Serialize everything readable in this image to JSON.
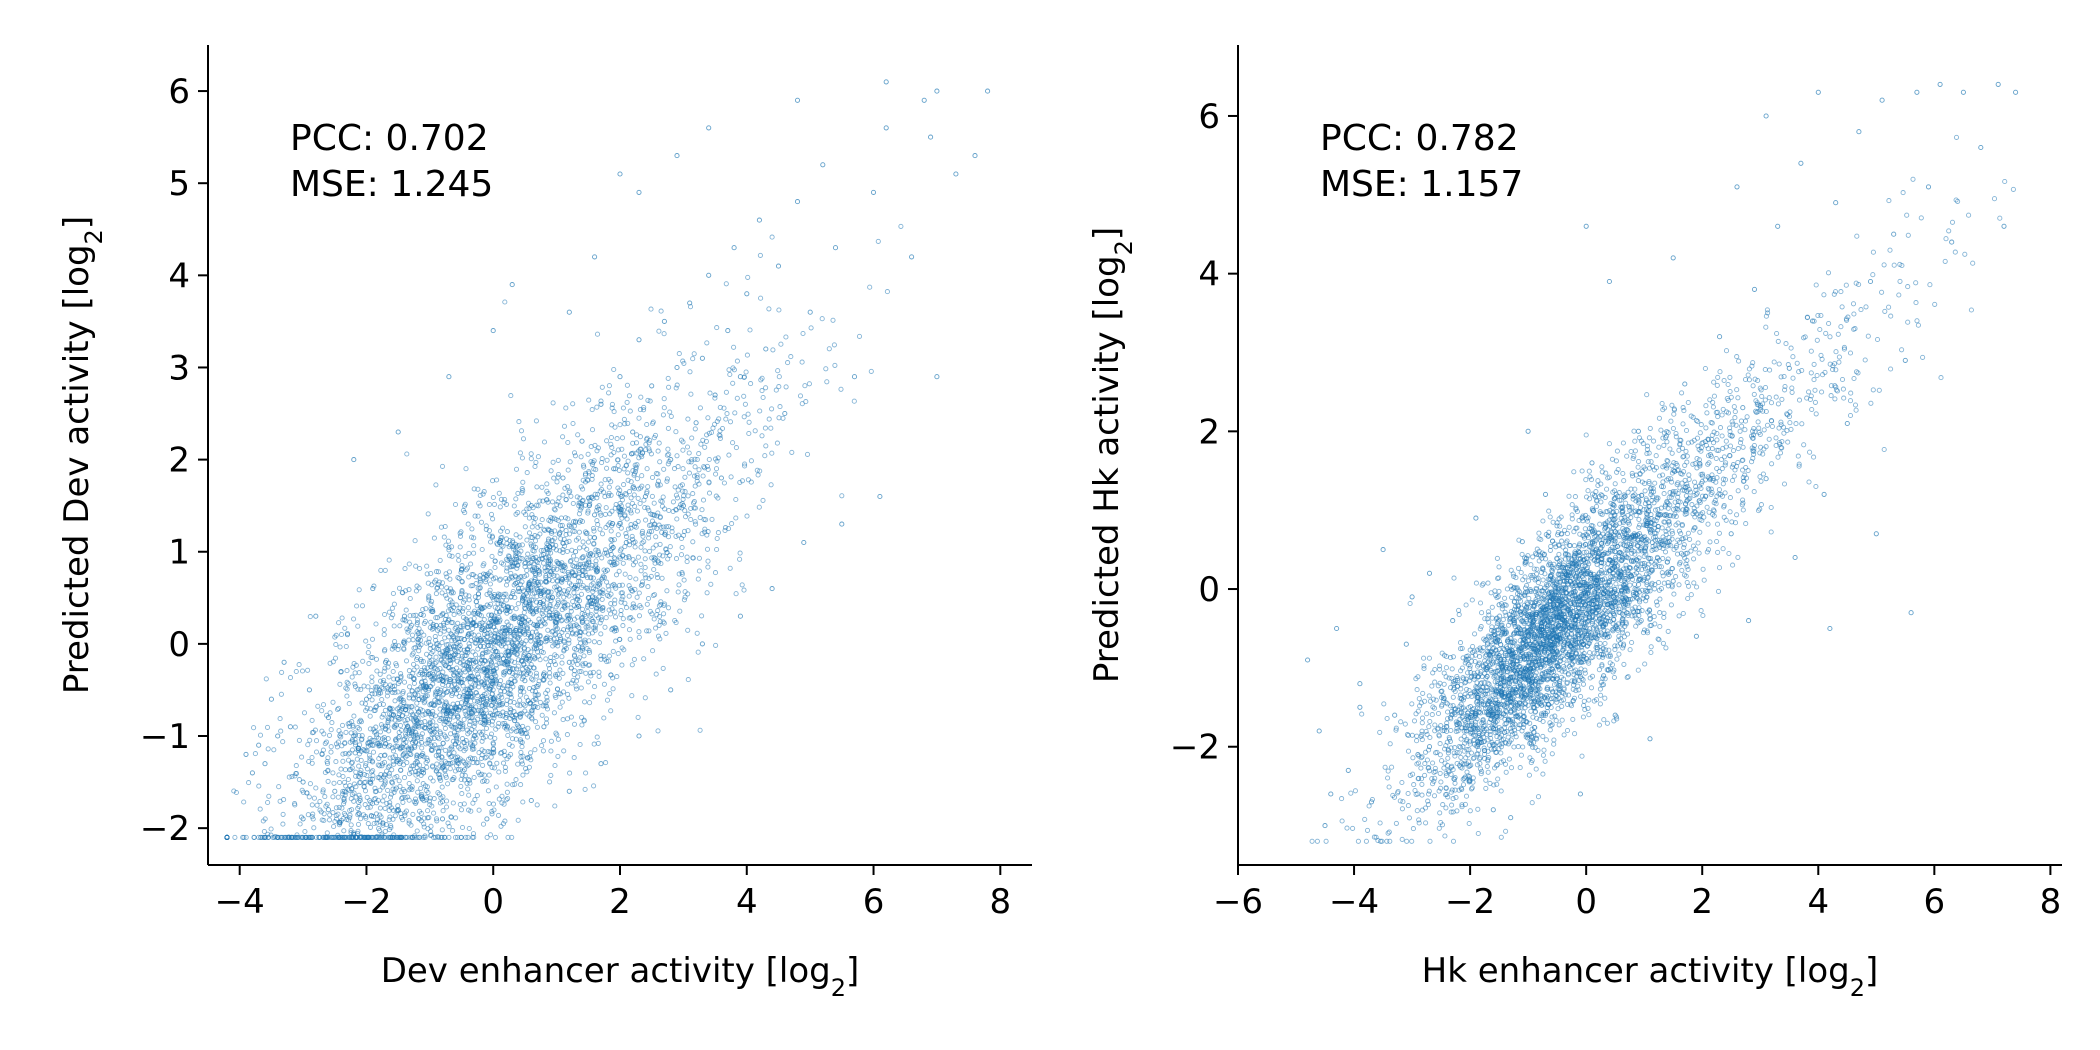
{
  "chart_data": [
    {
      "type": "scatter",
      "annotations": [
        "PCC: 0.702",
        "MSE: 1.245"
      ],
      "xlabel": {
        "main": "Dev enhancer activity [log",
        "sub": "2",
        "end": "]"
      },
      "ylabel": {
        "main": "Predicted Dev activity [log",
        "sub": "2",
        "end": "]"
      },
      "xlim": [
        -4.5,
        8.5
      ],
      "ylim": [
        -2.4,
        6.5
      ],
      "xticks": [
        -4,
        -2,
        0,
        2,
        4,
        6,
        8
      ],
      "xtick_labels": [
        "−4",
        "−2",
        "0",
        "2",
        "4",
        "6",
        "8"
      ],
      "yticks": [
        -2,
        -1,
        0,
        1,
        2,
        3,
        4,
        5,
        6
      ],
      "ytick_labels": [
        "−2",
        "−1",
        "0",
        "1",
        "2",
        "3",
        "4",
        "5",
        "6"
      ],
      "grid": false,
      "marker_color": "#1f77b4",
      "series": [
        {
          "points": [
            [
              -3.9,
              -1.2
            ],
            [
              -3.8,
              -1.4
            ],
            [
              -3.7,
              -1.1
            ],
            [
              -3.6,
              -1.3
            ],
            [
              -3.5,
              -0.6
            ],
            [
              -3.4,
              -1.0
            ],
            [
              -3.3,
              -0.2
            ],
            [
              -3.2,
              -0.9
            ],
            [
              -3.0,
              -1.5
            ],
            [
              -2.9,
              -0.5
            ],
            [
              -2.8,
              0.3
            ],
            [
              -2.7,
              -1.2
            ],
            [
              -2.6,
              -0.8
            ],
            [
              -2.5,
              -1.6
            ],
            [
              -2.4,
              -0.3
            ],
            [
              -2.3,
              0.1
            ],
            [
              -2.2,
              -1.0
            ],
            [
              -2.1,
              -1.4
            ],
            [
              -2.0,
              -0.6
            ],
            [
              -1.9,
              0.6
            ],
            [
              -1.8,
              -1.1
            ],
            [
              -1.7,
              -0.2
            ],
            [
              -1.6,
              -1.5
            ],
            [
              -1.5,
              -0.8
            ],
            [
              -1.4,
              0.3
            ],
            [
              -1.3,
              -1.2
            ],
            [
              -1.2,
              -0.5
            ],
            [
              -1.1,
              -1.4
            ],
            [
              -1.0,
              -0.9
            ],
            [
              -0.9,
              0.2
            ],
            [
              -0.8,
              -0.4
            ],
            [
              -0.7,
              -1.3
            ],
            [
              -0.6,
              -0.7
            ],
            [
              -0.5,
              0.8
            ],
            [
              -0.4,
              -0.2
            ],
            [
              -0.3,
              -1.0
            ],
            [
              -0.2,
              0.4
            ],
            [
              -0.1,
              -0.6
            ],
            [
              0.0,
              -0.3
            ],
            [
              0.1,
              1.1
            ],
            [
              0.2,
              -0.8
            ],
            [
              0.3,
              0.0
            ],
            [
              0.4,
              0.6
            ],
            [
              0.5,
              -0.4
            ],
            [
              0.6,
              1.5
            ],
            [
              0.7,
              0.2
            ],
            [
              0.8,
              -0.9
            ],
            [
              0.9,
              0.9
            ],
            [
              1.0,
              0.3
            ],
            [
              1.1,
              1.8
            ],
            [
              1.2,
              -0.2
            ],
            [
              1.3,
              1.0
            ],
            [
              1.4,
              2.2
            ],
            [
              1.5,
              0.5
            ],
            [
              1.6,
              1.4
            ],
            [
              1.7,
              2.6
            ],
            [
              1.8,
              0.8
            ],
            [
              1.9,
              1.9
            ],
            [
              2.0,
              2.9
            ],
            [
              2.1,
              1.1
            ],
            [
              2.2,
              2.3
            ],
            [
              2.3,
              3.3
            ],
            [
              2.4,
              1.6
            ],
            [
              2.5,
              2.8
            ],
            [
              2.6,
              0.9
            ],
            [
              2.7,
              3.5
            ],
            [
              2.8,
              2.0
            ],
            [
              2.9,
              3.0
            ],
            [
              3.0,
              1.5
            ],
            [
              3.1,
              3.7
            ],
            [
              3.2,
              2.4
            ],
            [
              3.3,
              3.1
            ],
            [
              3.4,
              4.0
            ],
            [
              3.5,
              2.7
            ],
            [
              3.6,
              1.8
            ],
            [
              3.7,
              3.4
            ],
            [
              3.8,
              4.3
            ],
            [
              3.9,
              2.9
            ],
            [
              4.0,
              3.8
            ],
            [
              4.2,
              4.6
            ],
            [
              4.3,
              3.2
            ],
            [
              4.5,
              4.1
            ],
            [
              4.6,
              2.5
            ],
            [
              4.8,
              4.8
            ],
            [
              5.0,
              3.6
            ],
            [
              5.2,
              5.2
            ],
            [
              5.4,
              4.3
            ],
            [
              5.7,
              2.9
            ],
            [
              6.0,
              4.9
            ],
            [
              6.2,
              5.6
            ],
            [
              6.6,
              4.2
            ],
            [
              6.8,
              5.9
            ],
            [
              7.0,
              2.9
            ],
            [
              7.3,
              5.1
            ],
            [
              7.6,
              5.3
            ],
            [
              7.8,
              6.0
            ],
            [
              6.1,
              1.6
            ],
            [
              5.5,
              1.3
            ],
            [
              4.9,
              1.1
            ],
            [
              4.4,
              0.6
            ],
            [
              3.9,
              0.3
            ],
            [
              3.3,
              0.0
            ],
            [
              2.8,
              -0.5
            ],
            [
              2.3,
              -1.0
            ],
            [
              1.7,
              -1.3
            ],
            [
              1.2,
              -1.6
            ],
            [
              0.6,
              -1.7
            ],
            [
              -0.1,
              -1.9
            ],
            [
              -0.8,
              -1.9
            ],
            [
              -1.5,
              -1.8
            ],
            [
              -2.1,
              -1.7
            ],
            [
              -2.6,
              -1.8
            ],
            [
              -3.0,
              -1.9
            ],
            [
              -2.2,
              2.0
            ],
            [
              -1.5,
              2.3
            ],
            [
              -0.7,
              2.9
            ],
            [
              0.0,
              3.4
            ],
            [
              0.3,
              3.9
            ],
            [
              1.2,
              3.6
            ],
            [
              1.6,
              4.2
            ],
            [
              2.3,
              4.9
            ],
            [
              2.0,
              5.1
            ],
            [
              2.9,
              5.3
            ],
            [
              3.4,
              5.6
            ],
            [
              4.8,
              5.9
            ],
            [
              6.2,
              6.1
            ],
            [
              7.0,
              6.0
            ],
            [
              6.9,
              5.5
            ]
          ]
        }
      ]
    },
    {
      "type": "scatter",
      "annotations": [
        "PCC: 0.782",
        "MSE: 1.157"
      ],
      "xlabel": {
        "main": "Hk enhancer activity [log",
        "sub": "2",
        "end": "]"
      },
      "ylabel": {
        "main": "Predicted Hk activity [log",
        "sub": "2",
        "end": "]"
      },
      "xlim": [
        -6,
        8.2
      ],
      "ylim": [
        -3.5,
        6.9
      ],
      "xticks": [
        -6,
        -4,
        -2,
        0,
        2,
        4,
        6,
        8
      ],
      "xtick_labels": [
        "−6",
        "−4",
        "−2",
        "0",
        "2",
        "4",
        "6",
        "8"
      ],
      "yticks": [
        -2,
        0,
        2,
        4,
        6
      ],
      "ytick_labels": [
        "−2",
        "0",
        "2",
        "4",
        "6"
      ],
      "grid": false,
      "marker_color": "#1f77b4",
      "series": [
        {
          "points": [
            [
              -4.8,
              -0.9
            ],
            [
              -4.6,
              -1.8
            ],
            [
              -4.5,
              -3.0
            ],
            [
              -4.3,
              -0.5
            ],
            [
              -4.1,
              -2.3
            ],
            [
              -3.9,
              -1.2
            ],
            [
              -3.7,
              -2.7
            ],
            [
              -3.5,
              0.5
            ],
            [
              -3.3,
              -1.6
            ],
            [
              -3.1,
              -0.7
            ],
            [
              -2.9,
              -2.1
            ],
            [
              -2.7,
              0.2
            ],
            [
              -2.5,
              -1.3
            ],
            [
              -2.3,
              -0.4
            ],
            [
              -2.1,
              -2.4
            ],
            [
              -1.9,
              0.9
            ],
            [
              -1.7,
              -1.0
            ],
            [
              -1.5,
              -0.2
            ],
            [
              -1.3,
              -2.9
            ],
            [
              -1.1,
              0.6
            ],
            [
              -0.9,
              -1.5
            ],
            [
              -0.7,
              1.2
            ],
            [
              -0.5,
              -0.8
            ],
            [
              -0.3,
              0.3
            ],
            [
              -0.1,
              -2.6
            ],
            [
              0.1,
              1.6
            ],
            [
              0.3,
              -1.1
            ],
            [
              0.5,
              0.8
            ],
            [
              0.7,
              -0.3
            ],
            [
              0.9,
              2.0
            ],
            [
              1.1,
              -1.9
            ],
            [
              1.3,
              1.3
            ],
            [
              1.5,
              0.1
            ],
            [
              1.7,
              2.6
            ],
            [
              1.9,
              -0.6
            ],
            [
              2.1,
              1.9
            ],
            [
              2.3,
              3.2
            ],
            [
              2.5,
              0.7
            ],
            [
              2.7,
              2.3
            ],
            [
              2.9,
              3.8
            ],
            [
              3.1,
              1.4
            ],
            [
              3.3,
              4.6
            ],
            [
              3.5,
              2.8
            ],
            [
              3.7,
              5.4
            ],
            [
              3.9,
              3.4
            ],
            [
              4.1,
              1.2
            ],
            [
              4.3,
              4.9
            ],
            [
              4.5,
              2.1
            ],
            [
              4.7,
              5.8
            ],
            [
              4.9,
              3.9
            ],
            [
              5.1,
              6.2
            ],
            [
              5.3,
              4.5
            ],
            [
              5.5,
              2.9
            ],
            [
              5.7,
              6.3
            ],
            [
              5.9,
              5.1
            ],
            [
              6.1,
              6.4
            ],
            [
              6.3,
              4.4
            ],
            [
              6.5,
              6.3
            ],
            [
              6.8,
              5.6
            ],
            [
              7.1,
              6.4
            ],
            [
              7.2,
              4.6
            ],
            [
              7.4,
              6.3
            ],
            [
              5.6,
              -0.3
            ],
            [
              5.0,
              0.7
            ],
            [
              4.2,
              -0.5
            ],
            [
              3.6,
              0.4
            ],
            [
              2.8,
              -0.4
            ],
            [
              0.5,
              -1.6
            ],
            [
              -1.6,
              -2.8
            ],
            [
              -2.7,
              -2.0
            ],
            [
              -3.9,
              -1.5
            ],
            [
              -4.4,
              -2.6
            ],
            [
              -3.0,
              -0.1
            ],
            [
              -1.0,
              2.0
            ],
            [
              0.4,
              3.9
            ],
            [
              1.5,
              4.2
            ],
            [
              0.0,
              4.6
            ],
            [
              2.6,
              5.1
            ],
            [
              3.1,
              6.0
            ],
            [
              4.0,
              6.3
            ]
          ]
        }
      ]
    }
  ]
}
